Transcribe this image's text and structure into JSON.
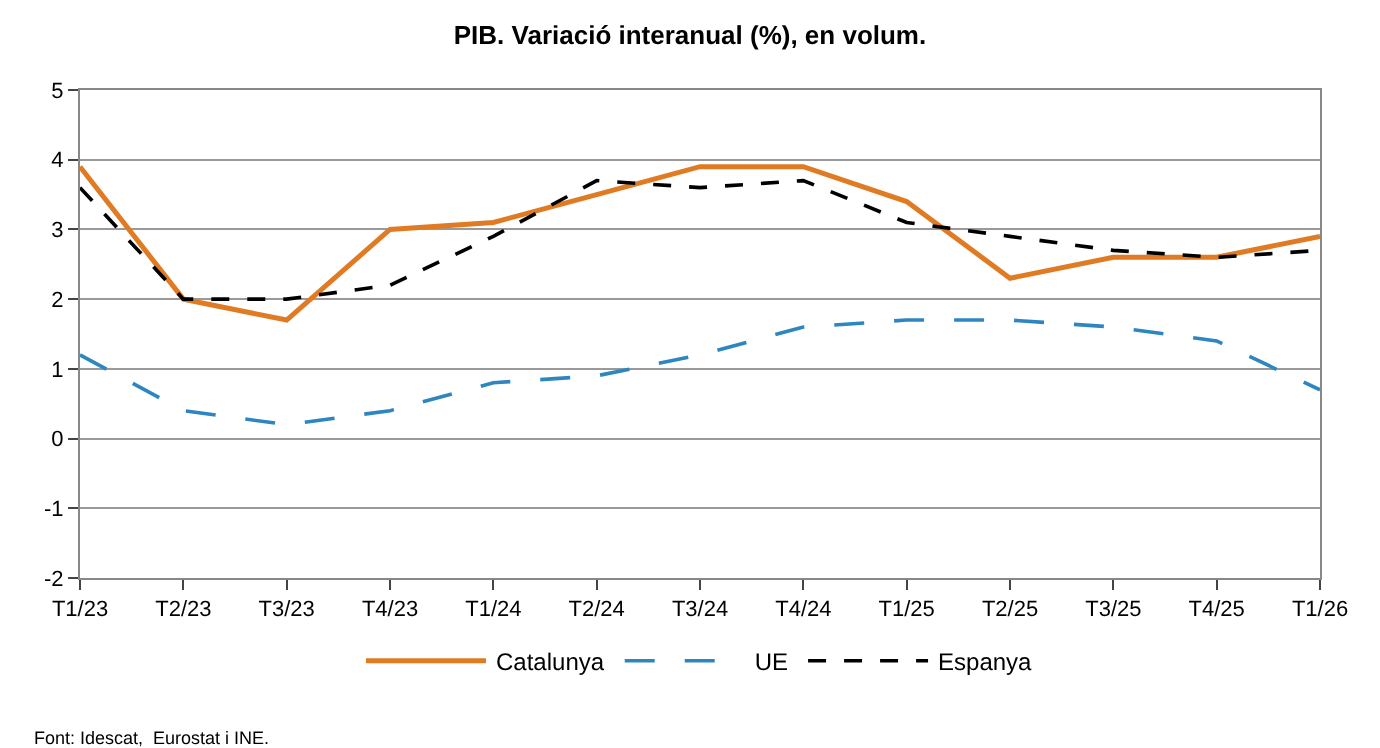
{
  "chart_data": {
    "type": "line",
    "title": "PIB. Variació interanual (%), en volum.",
    "categories": [
      "T1/23",
      "T2/23",
      "T3/23",
      "T4/23",
      "T1/24",
      "T2/24",
      "T3/24",
      "T4/24",
      "T1/25",
      "T2/25",
      "T3/25",
      "T4/25",
      "T1/26"
    ],
    "series": [
      {
        "name": "Catalunya",
        "color": "#e07b24",
        "line_style": "solid",
        "values": [
          3.9,
          2.0,
          1.7,
          3.0,
          3.1,
          3.5,
          3.9,
          3.9,
          3.4,
          2.3,
          2.6,
          2.6,
          2.9
        ]
      },
      {
        "name": "UE",
        "color": "#2e86c1",
        "line_style": "dashed",
        "values": [
          1.2,
          0.4,
          0.2,
          0.4,
          0.8,
          0.9,
          1.2,
          1.6,
          1.7,
          1.7,
          1.6,
          1.4,
          0.7
        ]
      },
      {
        "name": "Espanya",
        "color": "#000000",
        "line_style": "dotted",
        "values": [
          3.6,
          2.0,
          2.0,
          2.2,
          2.9,
          3.7,
          3.6,
          3.7,
          3.1,
          2.9,
          2.7,
          2.6,
          2.7
        ]
      }
    ],
    "ylim": [
      -2,
      5
    ],
    "yticks": [
      -2,
      -1,
      0,
      1,
      2,
      3,
      4,
      5
    ],
    "grid": "y",
    "legend": "bottom",
    "marker": "none",
    "annotations": [
      "Font: Idescat,  Eurostat i INE."
    ]
  }
}
